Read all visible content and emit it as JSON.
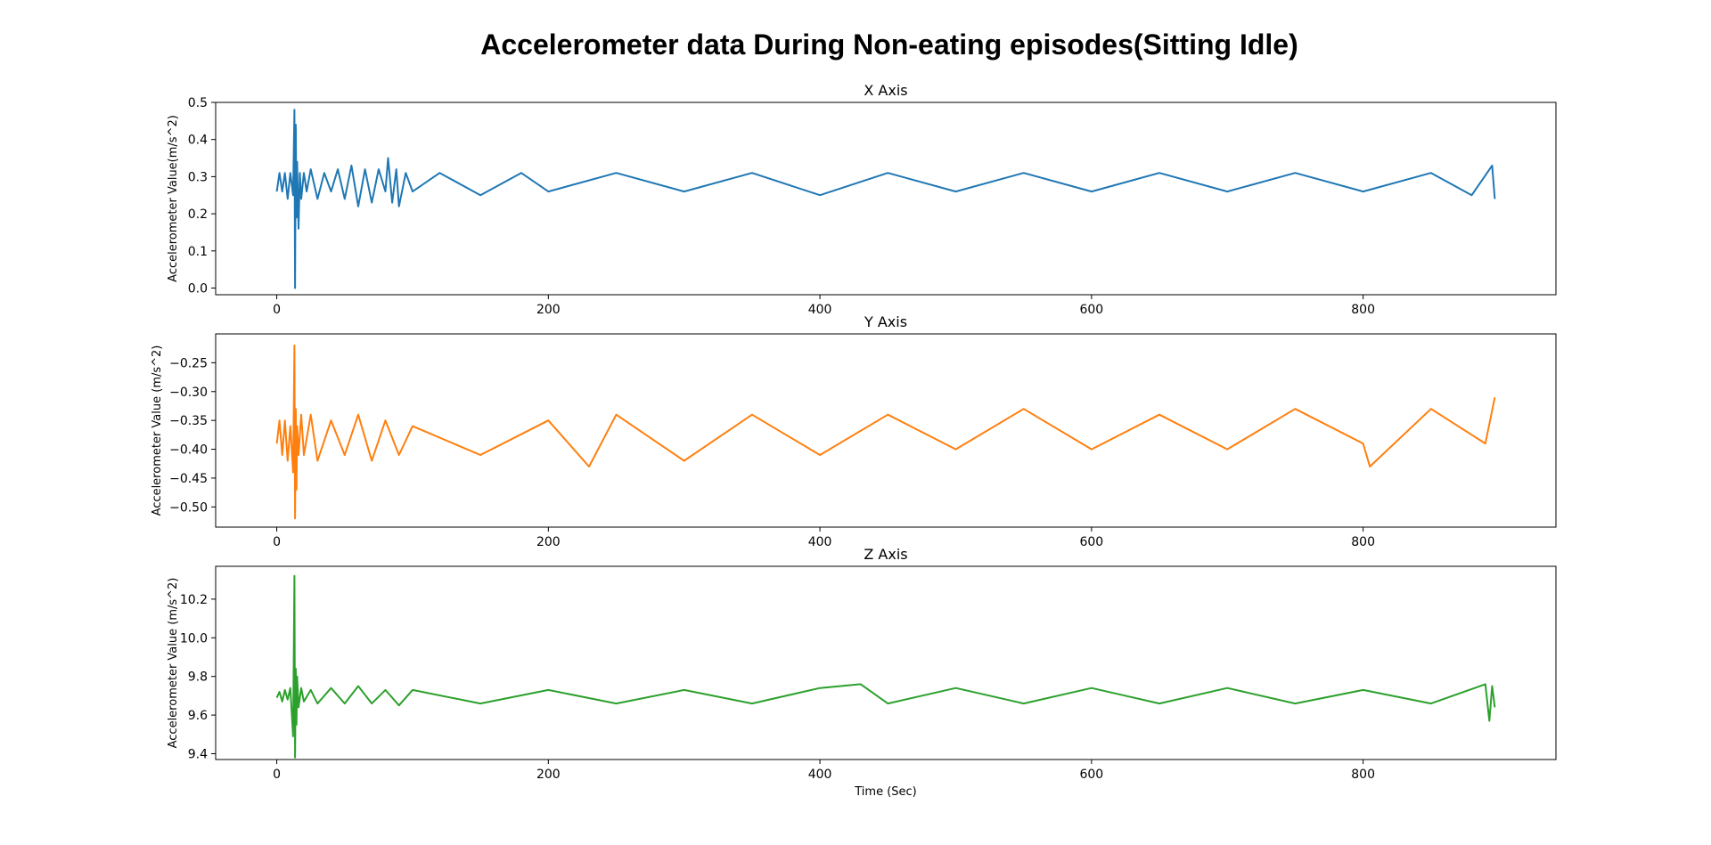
{
  "title": "Accelerometer data During Non-eating episodes(Sitting Idle)",
  "chart_data": [
    {
      "type": "line",
      "title": "X Axis",
      "xlabel": "",
      "ylabel": "Accelerometer Value(m/s^2)",
      "xlim": [
        -45,
        942
      ],
      "ylim": [
        -0.018,
        0.5
      ],
      "xticks": [
        0,
        200,
        400,
        600,
        800
      ],
      "yticks": [
        0.0,
        0.1,
        0.2,
        0.3,
        0.4,
        0.5
      ],
      "ytick_labels": [
        "0.0",
        "0.1",
        "0.2",
        "0.3",
        "0.4",
        "0.5"
      ],
      "color": "#1f77b4",
      "series": [
        {
          "x": [
            0,
            2,
            4,
            6,
            8,
            10,
            12,
            13,
            13.5,
            14,
            14.5,
            15,
            16,
            17,
            18,
            20,
            22,
            25,
            30,
            35,
            40,
            45,
            50,
            55,
            60,
            65,
            70,
            75,
            80,
            82,
            85,
            88,
            90,
            95,
            100,
            120,
            150,
            180,
            200,
            250,
            300,
            350,
            400,
            450,
            500,
            550,
            600,
            650,
            700,
            750,
            800,
            850,
            880,
            895,
            897
          ],
          "values": [
            0.26,
            0.31,
            0.26,
            0.31,
            0.24,
            0.31,
            0.25,
            0.48,
            0.0,
            0.44,
            0.19,
            0.34,
            0.16,
            0.31,
            0.24,
            0.31,
            0.26,
            0.32,
            0.24,
            0.31,
            0.26,
            0.32,
            0.24,
            0.33,
            0.22,
            0.32,
            0.23,
            0.32,
            0.26,
            0.35,
            0.23,
            0.32,
            0.22,
            0.31,
            0.26,
            0.31,
            0.25,
            0.31,
            0.26,
            0.31,
            0.26,
            0.31,
            0.25,
            0.31,
            0.26,
            0.31,
            0.26,
            0.31,
            0.26,
            0.31,
            0.26,
            0.31,
            0.25,
            0.33,
            0.24
          ]
        }
      ]
    },
    {
      "type": "line",
      "title": "Y Axis",
      "xlabel": "",
      "ylabel": "Accelerometer Value (m/s^2)",
      "xlim": [
        -45,
        942
      ],
      "ylim": [
        -0.535,
        -0.2
      ],
      "xticks": [
        0,
        200,
        400,
        600,
        800
      ],
      "yticks": [
        -0.5,
        -0.45,
        -0.4,
        -0.35,
        -0.3,
        -0.25
      ],
      "ytick_labels": [
        "−0.50",
        "−0.45",
        "−0.40",
        "−0.35",
        "−0.30",
        "−0.25"
      ],
      "color": "#ff7f0e",
      "series": [
        {
          "x": [
            0,
            2,
            4,
            6,
            8,
            10,
            12,
            13,
            13.5,
            14,
            14.5,
            15,
            16,
            18,
            20,
            25,
            30,
            40,
            50,
            60,
            70,
            80,
            90,
            100,
            150,
            200,
            230,
            250,
            300,
            350,
            400,
            450,
            500,
            550,
            600,
            650,
            700,
            750,
            800,
            805,
            850,
            890,
            897
          ],
          "values": [
            -0.39,
            -0.35,
            -0.41,
            -0.35,
            -0.42,
            -0.36,
            -0.44,
            -0.22,
            -0.52,
            -0.33,
            -0.47,
            -0.36,
            -0.41,
            -0.34,
            -0.41,
            -0.34,
            -0.42,
            -0.35,
            -0.41,
            -0.34,
            -0.42,
            -0.35,
            -0.41,
            -0.36,
            -0.41,
            -0.35,
            -0.43,
            -0.34,
            -0.42,
            -0.34,
            -0.41,
            -0.34,
            -0.4,
            -0.33,
            -0.4,
            -0.34,
            -0.4,
            -0.33,
            -0.39,
            -0.43,
            -0.33,
            -0.39,
            -0.31
          ]
        }
      ]
    },
    {
      "type": "line",
      "title": "Z Axis",
      "xlabel": "Time (Sec)",
      "ylabel": "Accelerometer Value (m/s^2)",
      "xlim": [
        -45,
        942
      ],
      "ylim": [
        9.37,
        10.37
      ],
      "xticks": [
        0,
        200,
        400,
        600,
        800
      ],
      "yticks": [
        9.4,
        9.6,
        9.8,
        10.0,
        10.2
      ],
      "ytick_labels": [
        "9.4",
        "9.6",
        "9.8",
        "10.0",
        "10.2"
      ],
      "color": "#2ca02c",
      "series": [
        {
          "x": [
            0,
            2,
            4,
            6,
            8,
            10,
            12,
            13,
            13.5,
            14,
            14.5,
            15,
            16,
            18,
            20,
            25,
            30,
            40,
            50,
            60,
            70,
            80,
            90,
            100,
            150,
            200,
            250,
            300,
            350,
            400,
            430,
            450,
            500,
            550,
            600,
            650,
            700,
            750,
            800,
            850,
            890,
            893,
            895,
            897
          ],
          "values": [
            9.69,
            9.72,
            9.67,
            9.73,
            9.68,
            9.74,
            9.49,
            10.32,
            9.38,
            9.84,
            9.55,
            9.8,
            9.64,
            9.74,
            9.67,
            9.73,
            9.66,
            9.74,
            9.66,
            9.75,
            9.66,
            9.73,
            9.65,
            9.73,
            9.66,
            9.73,
            9.66,
            9.73,
            9.66,
            9.74,
            9.76,
            9.66,
            9.74,
            9.66,
            9.74,
            9.66,
            9.74,
            9.66,
            9.73,
            9.66,
            9.76,
            9.57,
            9.75,
            9.64
          ]
        }
      ]
    }
  ]
}
